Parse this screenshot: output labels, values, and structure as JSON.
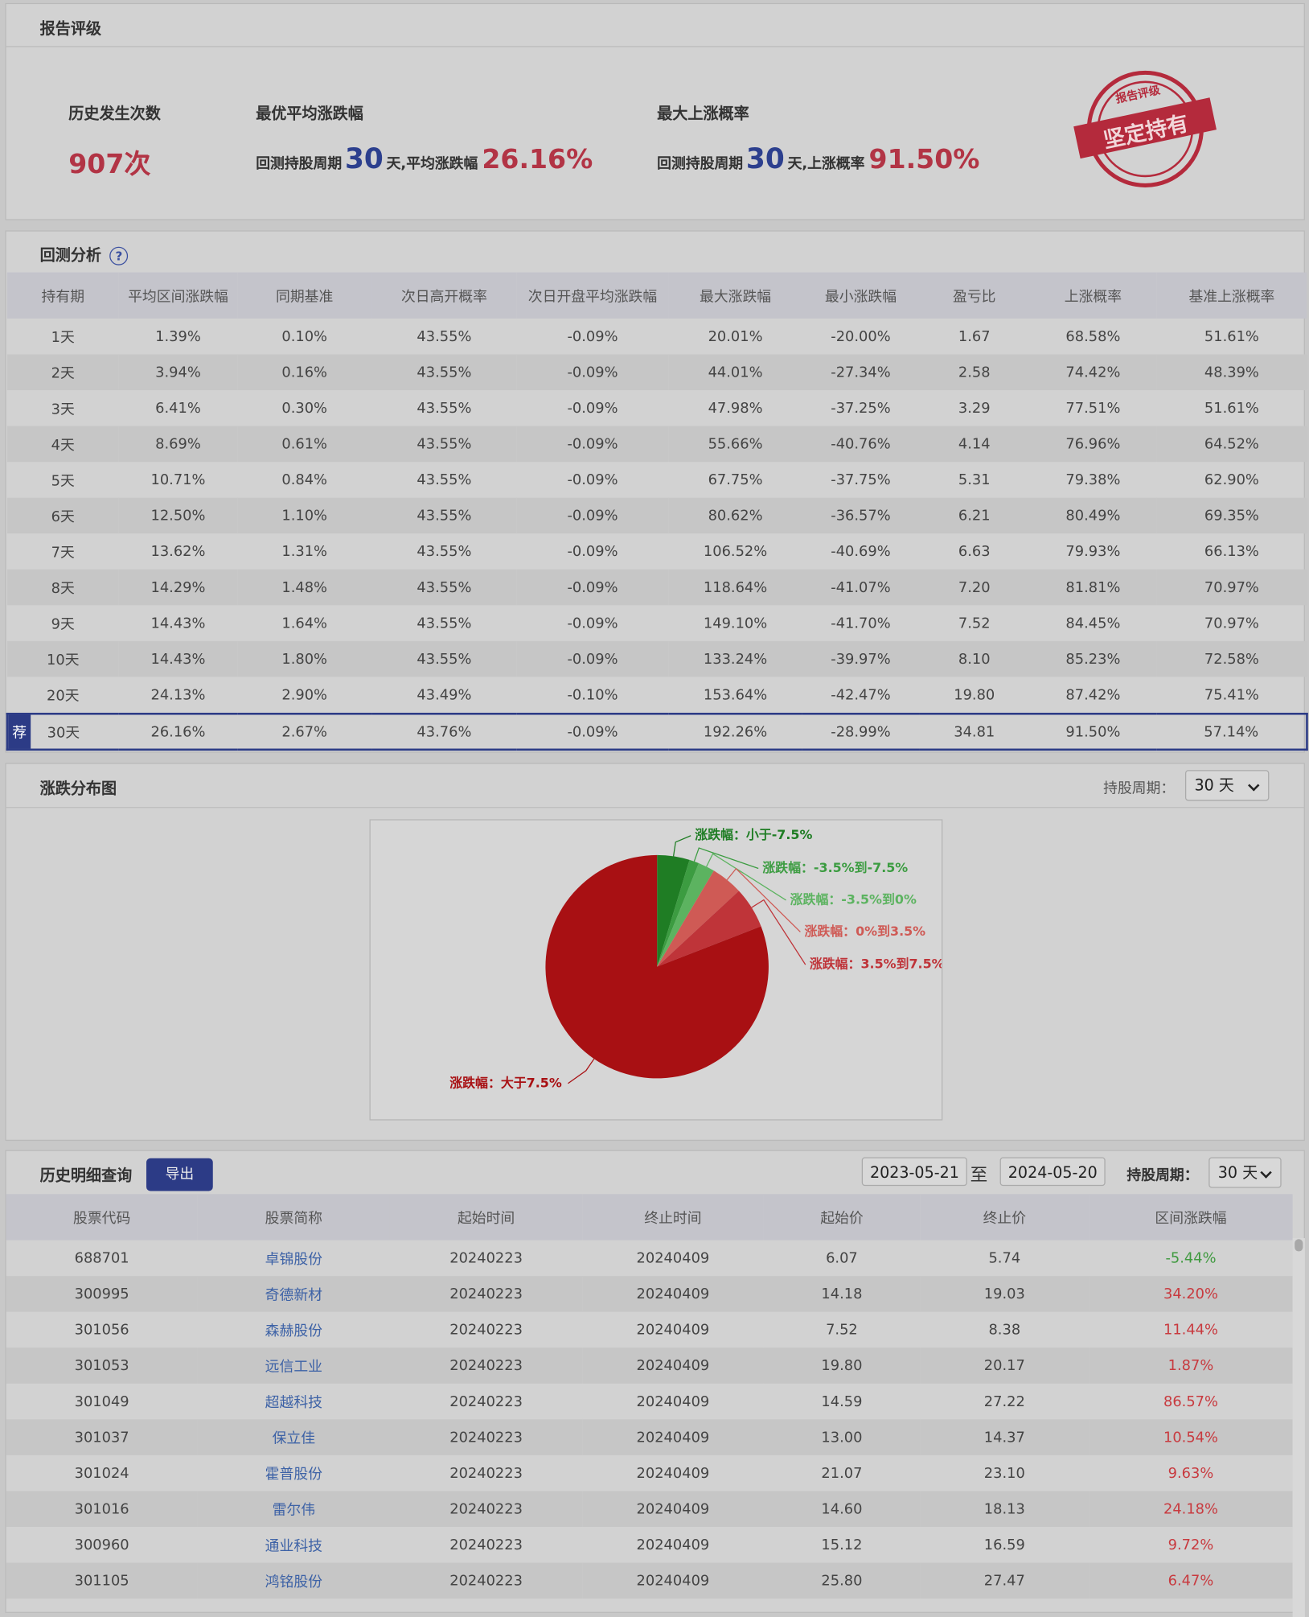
{
  "rating": {
    "title": "报告评级",
    "count_label": "历史发生次数",
    "count": "907次",
    "best": {
      "label": "最优平均涨跌幅",
      "period_label": "回测持股周期",
      "period": "30",
      "mid": "天,平均涨跌幅",
      "value": "26.16%"
    },
    "maxup": {
      "label": "最大上涨概率",
      "period_label": "回测持股周期",
      "period": "30",
      "mid": "天,上涨概率",
      "value": "91.50%"
    },
    "stamp": {
      "top": "报告评级",
      "text": "坚定持有"
    }
  },
  "backtest": {
    "title": "回测分析",
    "help": "?",
    "columns": [
      "持有期",
      "平均区间涨跌幅",
      "同期基准",
      "次日高开概率",
      "次日开盘平均涨跌幅",
      "最大涨跌幅",
      "最小涨跌幅",
      "盈亏比",
      "上涨概率",
      "基准上涨概率"
    ],
    "rows": [
      {
        "cells": [
          "1天",
          "1.39%",
          "0.10%",
          "43.55%",
          "-0.09%",
          "20.01%",
          "-20.00%",
          "1.67",
          "68.58%",
          "51.61%"
        ]
      },
      {
        "cells": [
          "2天",
          "3.94%",
          "0.16%",
          "43.55%",
          "-0.09%",
          "44.01%",
          "-27.34%",
          "2.58",
          "74.42%",
          "48.39%"
        ]
      },
      {
        "cells": [
          "3天",
          "6.41%",
          "0.30%",
          "43.55%",
          "-0.09%",
          "47.98%",
          "-37.25%",
          "3.29",
          "77.51%",
          "51.61%"
        ]
      },
      {
        "cells": [
          "4天",
          "8.69%",
          "0.61%",
          "43.55%",
          "-0.09%",
          "55.66%",
          "-40.76%",
          "4.14",
          "76.96%",
          "64.52%"
        ]
      },
      {
        "cells": [
          "5天",
          "10.71%",
          "0.84%",
          "43.55%",
          "-0.09%",
          "67.75%",
          "-37.75%",
          "5.31",
          "79.38%",
          "62.90%"
        ]
      },
      {
        "cells": [
          "6天",
          "12.50%",
          "1.10%",
          "43.55%",
          "-0.09%",
          "80.62%",
          "-36.57%",
          "6.21",
          "80.49%",
          "69.35%"
        ]
      },
      {
        "cells": [
          "7天",
          "13.62%",
          "1.31%",
          "43.55%",
          "-0.09%",
          "106.52%",
          "-40.69%",
          "6.63",
          "79.93%",
          "66.13%"
        ]
      },
      {
        "cells": [
          "8天",
          "14.29%",
          "1.48%",
          "43.55%",
          "-0.09%",
          "118.64%",
          "-41.07%",
          "7.20",
          "81.81%",
          "70.97%"
        ]
      },
      {
        "cells": [
          "9天",
          "14.43%",
          "1.64%",
          "43.55%",
          "-0.09%",
          "149.10%",
          "-41.70%",
          "7.52",
          "84.45%",
          "70.97%"
        ]
      },
      {
        "cells": [
          "10天",
          "14.43%",
          "1.80%",
          "43.55%",
          "-0.09%",
          "133.24%",
          "-39.97%",
          "8.10",
          "85.23%",
          "72.58%"
        ]
      },
      {
        "cells": [
          "20天",
          "24.13%",
          "2.90%",
          "43.49%",
          "-0.10%",
          "153.64%",
          "-42.47%",
          "19.80",
          "87.42%",
          "75.41%"
        ]
      },
      {
        "badge": "荐",
        "cells": [
          "30天",
          "26.16%",
          "2.67%",
          "43.76%",
          "-0.09%",
          "192.26%",
          "-28.99%",
          "34.81",
          "91.50%",
          "57.14%"
        ]
      }
    ]
  },
  "distribution": {
    "title": "涨跌分布图",
    "period_label": "持股周期：",
    "period_option": "30 天"
  },
  "chart_data": {
    "type": "pie",
    "categories": [
      "涨跌幅：小于-7.5%",
      "涨跌幅：-3.5%到-7.5%",
      "涨跌幅：-3.5%到0%",
      "涨跌幅：0%到3.5%",
      "涨跌幅：3.5%到7.5%",
      "涨跌幅：大于7.5%"
    ],
    "values": [
      4.7,
      1.4,
      2.4,
      4.6,
      6.0,
      80.9
    ],
    "colors": [
      "#1f7d24",
      "#3c9c41",
      "#5cb360",
      "#cf5a55",
      "#bf3439",
      "#a81013"
    ]
  },
  "history": {
    "title": "历史明细查询",
    "export": "导出",
    "start": "2023-05-21",
    "to": "至",
    "end": "2024-05-20",
    "period_label": "持股周期：",
    "period_option": "30 天",
    "columns": [
      "股票代码",
      "股票简称",
      "起始时间",
      "终止时间",
      "起始价",
      "终止价",
      "区间涨跌幅"
    ],
    "rows": [
      [
        "688701",
        "卓锦股份",
        "20240223",
        "20240409",
        "6.07",
        "5.74",
        "-5.44%"
      ],
      [
        "300995",
        "奇德新材",
        "20240223",
        "20240409",
        "14.18",
        "19.03",
        "34.20%"
      ],
      [
        "301056",
        "森赫股份",
        "20240223",
        "20240409",
        "7.52",
        "8.38",
        "11.44%"
      ],
      [
        "301053",
        "远信工业",
        "20240223",
        "20240409",
        "19.80",
        "20.17",
        "1.87%"
      ],
      [
        "301049",
        "超越科技",
        "20240223",
        "20240409",
        "14.59",
        "27.22",
        "86.57%"
      ],
      [
        "301037",
        "保立佳",
        "20240223",
        "20240409",
        "13.00",
        "14.37",
        "10.54%"
      ],
      [
        "301024",
        "霍普股份",
        "20240223",
        "20240409",
        "21.07",
        "23.10",
        "9.63%"
      ],
      [
        "301016",
        "雷尔伟",
        "20240223",
        "20240409",
        "14.60",
        "18.13",
        "24.18%"
      ],
      [
        "300960",
        "通业科技",
        "20240223",
        "20240409",
        "15.12",
        "16.59",
        "9.72%"
      ],
      [
        "301105",
        "鸿铭股份",
        "20240223",
        "20240409",
        "25.80",
        "27.47",
        "6.47%"
      ]
    ]
  }
}
